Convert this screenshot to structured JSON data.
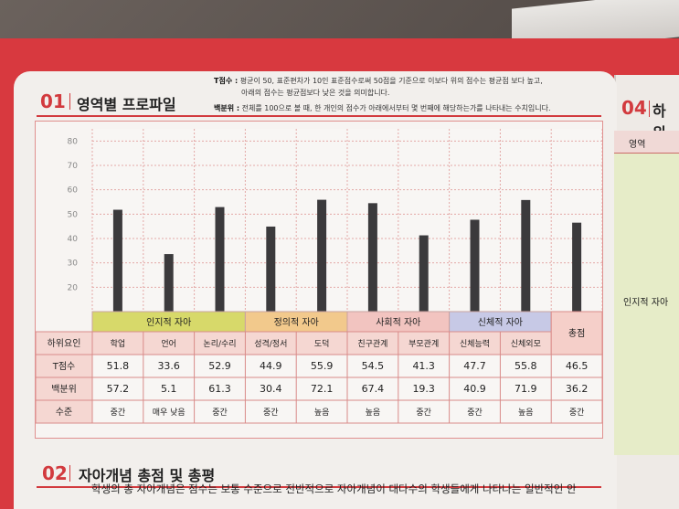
{
  "section1": {
    "number": "01",
    "title": "영역별 프로파일",
    "note_t_label": "T점수 :",
    "note_t_line1": "평균이 50, 표준편차가 10인 표준점수로써 50점을 기준으로 이보다 위의 점수는 평균점 보다 높고,",
    "note_t_line2": "아래의 점수는 평균점보다 낮은 것을 의미합니다.",
    "note_pct_label": "백분위 :",
    "note_pct_text": "전체를 100으로 볼 때, 한 개인의 점수가 아래에서부터 몇 번째에 해당하는가를 나타내는 수치입니다."
  },
  "section4": {
    "number": "04",
    "title": "하위",
    "col_header": "영역",
    "row_label": "인지적 자아"
  },
  "section2": {
    "number": "02",
    "title": "자아개념 총점 및 총평",
    "text_line": "학생의 총 자아개념은 점수는 보통 수준으로 전반적으로 자아개념이 대다수의 학생들에게 나타나는 일반적인 안"
  },
  "chart_data": {
    "type": "bar",
    "ylim": [
      10,
      85
    ],
    "yticks": [
      20,
      30,
      40,
      50,
      60,
      70,
      80
    ],
    "grid": true,
    "groups": [
      {
        "label": "인지적 자아",
        "color": "#d7d96a",
        "span": 3
      },
      {
        "label": "정의적 자아",
        "color": "#f2c98c",
        "span": 2
      },
      {
        "label": "사회적 자아",
        "color": "#f2c4c0",
        "span": 2
      },
      {
        "label": "신체적 자아",
        "color": "#c7c9e6",
        "span": 2
      },
      {
        "label": "총점",
        "color": "#f2c4c0",
        "span": 1
      }
    ],
    "row_labels": [
      "하위요인",
      "T점수",
      "백분위",
      "수준"
    ],
    "categories": [
      "학업",
      "언어",
      "논리/수리",
      "성격/정서",
      "도덕",
      "친구관계",
      "부모관계",
      "신체능력",
      "신체외모",
      ""
    ],
    "t_scores": [
      "51.8",
      "33.6",
      "52.9",
      "44.9",
      "55.9",
      "54.5",
      "41.3",
      "47.7",
      "55.8",
      "46.5"
    ],
    "percentiles": [
      "57.2",
      "5.1",
      "61.3",
      "30.4",
      "72.1",
      "67.4",
      "19.3",
      "40.9",
      "71.9",
      "36.2"
    ],
    "levels": [
      "중간",
      "매우 낮음",
      "중간",
      "중간",
      "높음",
      "높음",
      "중간",
      "중간",
      "높음",
      "중간"
    ],
    "series": [
      {
        "values": [
          51.8,
          33.6,
          52.9,
          44.9,
          55.9,
          54.5,
          41.3,
          47.7,
          55.8,
          46.5
        ]
      }
    ],
    "colors": {
      "bar": "#3b3a3c",
      "grid": "#e3a9a7",
      "accent": "#d23a3e",
      "header_row": "#f5d7d2"
    }
  }
}
